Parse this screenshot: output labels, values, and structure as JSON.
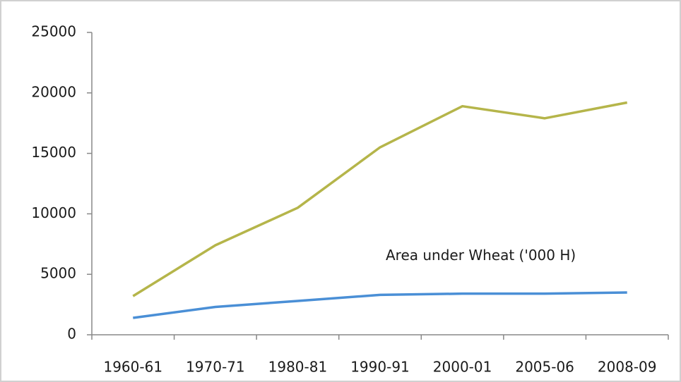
{
  "chart_data": {
    "type": "line",
    "categories": [
      "1960-61",
      "1970-71",
      "1980-81",
      "1990-91",
      "2000-01",
      "2005-06",
      "2008-09"
    ],
    "series": [
      {
        "color": "#b5b54a",
        "values": [
          3200,
          7400,
          10500,
          15500,
          18900,
          17900,
          19200
        ]
      },
      {
        "name": "Area under  Wheat ('000 H)",
        "color": "#4a8fd6",
        "values": [
          1400,
          2300,
          2800,
          3300,
          3400,
          3400,
          3500
        ]
      }
    ],
    "ylim": [
      0,
      25000
    ],
    "yticks": [
      0,
      5000,
      10000,
      15000,
      20000,
      25000
    ],
    "grid": false
  }
}
